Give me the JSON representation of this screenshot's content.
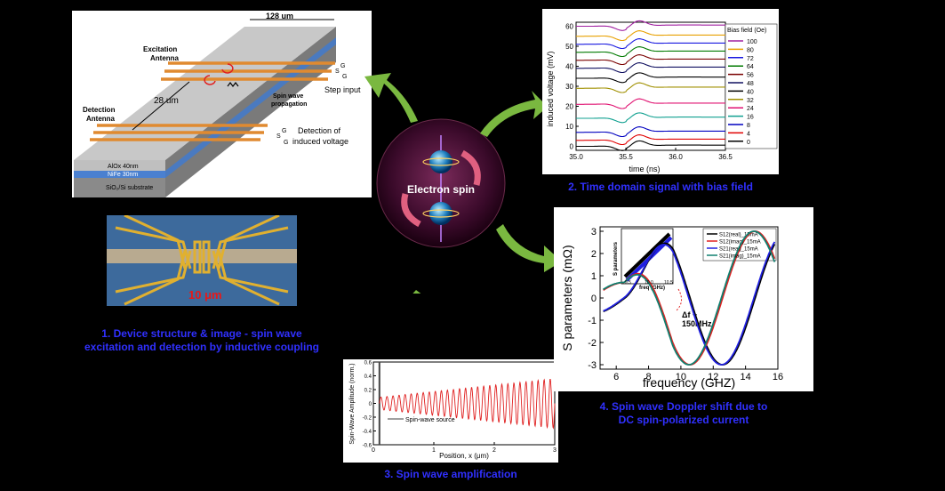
{
  "center": {
    "label": "Electron spin"
  },
  "panel1": {
    "width_label": "128 um",
    "excitation_label_1": "Excitation",
    "excitation_label_2": "Antenna",
    "detection_label_1": "Detection",
    "detection_label_2": "Antenna",
    "gap_label": "28 um",
    "step_input": "Step input",
    "spin_wave_1": "Spin wave",
    "spin_wave_2": "propagation",
    "detect_voltage_1": "Detection of",
    "detect_voltage_2": "induced voltage",
    "g_label": "G",
    "s_label": "S",
    "layer_alox": "AlOx 40nm",
    "layer_nife": "NiFe 30nm",
    "layer_sub": "SiO₂/Si substrate",
    "micro_scale": "10 μm",
    "caption_1": "1.  Device structure & image - spin wave",
    "caption_2": "excitation and detection by inductive coupling"
  },
  "panel2": {
    "caption": "2. Time domain signal with bias field",
    "chart_data": {
      "type": "line",
      "xlabel": "time (ns)",
      "ylabel": "induced voltage (mV)",
      "xlim": [
        35.0,
        36.5
      ],
      "ylim": [
        -2,
        62
      ],
      "x_ticks": [
        "35.0",
        "35.5",
        "36.0",
        "36.5"
      ],
      "y_ticks": [
        "0",
        "10",
        "20",
        "30",
        "40",
        "50",
        "60"
      ],
      "legend_title": "Bias field (Oe)",
      "legend_position": "right",
      "series": [
        {
          "name": "100",
          "offset": 60,
          "color": "#a020a0"
        },
        {
          "name": "80",
          "offset": 55,
          "color": "#e8a000"
        },
        {
          "name": "72",
          "offset": 51,
          "color": "#1818e0"
        },
        {
          "name": "64",
          "offset": 47,
          "color": "#007a00"
        },
        {
          "name": "56",
          "offset": 43,
          "color": "#7a0000"
        },
        {
          "name": "48",
          "offset": 39,
          "color": "#101060"
        },
        {
          "name": "40",
          "offset": 34,
          "color": "#000000"
        },
        {
          "name": "32",
          "offset": 29,
          "color": "#a09000"
        },
        {
          "name": "24",
          "offset": 21,
          "color": "#e01070"
        },
        {
          "name": "16",
          "offset": 14,
          "color": "#10a090"
        },
        {
          "name": "8",
          "offset": 7,
          "color": "#0000c0"
        },
        {
          "name": "4",
          "offset": 3,
          "color": "#e00000"
        },
        {
          "name": "0",
          "offset": 0,
          "color": "#000000"
        }
      ]
    }
  },
  "panel3": {
    "caption": "3. Spin wave amplification",
    "chart_data": {
      "type": "line",
      "xlabel": "Position, x (μm)",
      "ylabel": "Spin-Wave Amplitude (norm.)",
      "xlim": [
        0,
        3
      ],
      "ylim": [
        -0.6,
        0.6
      ],
      "x_ticks": [
        "0",
        "1",
        "2",
        "3"
      ],
      "y_ticks": [
        "0.6",
        "0.4",
        "0.2",
        "0",
        "-0.2",
        "-0.4",
        "-0.6"
      ],
      "source_position": 0.1,
      "annotation": "Spin-wave source",
      "wavelength": 0.1,
      "amplitude_start": 0.08,
      "amplitude_end": 0.36,
      "color": "#e02020"
    }
  },
  "panel4": {
    "caption_1": "4. Spin wave Doppler shift due to",
    "caption_2": "DC spin-polarized current",
    "delta_label_1": "Δf ~",
    "delta_label_2": "150MHz",
    "chart_data": {
      "type": "line",
      "xlabel": "frequency (GHZ)",
      "ylabel": "S parameters (mΩ)",
      "xlim": [
        5,
        16
      ],
      "ylim": [
        -3.2,
        3.2
      ],
      "x_ticks": [
        "6",
        "8",
        "10",
        "12",
        "14",
        "16"
      ],
      "y_ticks": [
        "3",
        "2",
        "1",
        "0",
        "-1",
        "-2",
        "-3"
      ],
      "legend_position": "top-right",
      "series": [
        {
          "name": "S12(real)_15mA",
          "color": "#000000",
          "phase": 0.0
        },
        {
          "name": "S12(imag)_15mA",
          "color": "#e02020",
          "phase": 1.57
        },
        {
          "name": "S21(real)_15mA",
          "color": "#2020e0",
          "phase": 0.06
        },
        {
          "name": "S21(imag)_15mA",
          "color": "#108070",
          "phase": 1.63
        }
      ],
      "inset": {
        "xlabel": "freq (GHz)",
        "ylabel": "S parameters",
        "x_ticks": [
          "9.5",
          "10.0",
          "10.5"
        ]
      }
    }
  }
}
